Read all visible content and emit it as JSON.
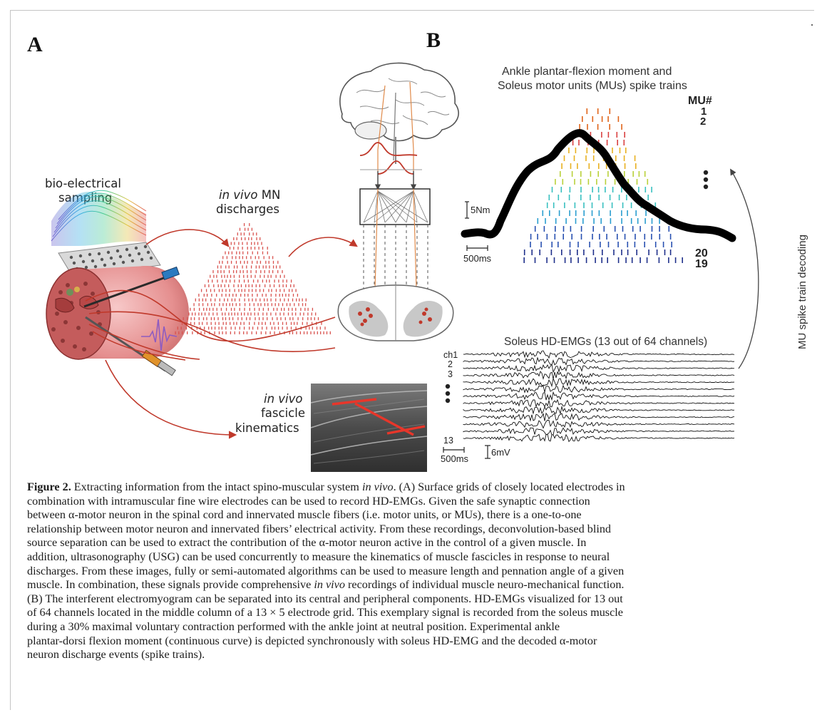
{
  "panels": {
    "a": {
      "letter": "A",
      "bio_electrical_line1": "bio-electrical",
      "bio_electrical_line2": "sampling",
      "mn_discharges_italic": "in vivo",
      "mn_discharges_rest": " MN",
      "mn_discharges_line2": "discharges",
      "fascicle_line1": "in vivo",
      "fascicle_line2": "fascicle",
      "fascicle_line3": "kinematics"
    },
    "b": {
      "letter": "B",
      "title_line1": "Ankle plantar-flexion moment and",
      "title_line2": "Soleus motor units (MUs) spike trains",
      "mu_header": "MU#",
      "mu_top_1": "1",
      "mu_top_2": "2",
      "mu_bottom_20": "20",
      "mu_bottom_19": "19",
      "moment_scale": "5Nm",
      "time_scale_top": "500ms",
      "emg_title": "Soleus HD-EMGs (13 out of 64 channels)",
      "ch_first": "ch1",
      "ch_2": "2",
      "ch_3": "3",
      "ch_last": "13",
      "time_scale_bottom": "500ms",
      "emg_scale": "6mV",
      "decoding_label": "MU spike train decoding"
    }
  },
  "colors": {
    "red_arrow": "#c0392b",
    "spike_red": "#d9534f",
    "moment_curve": "#000000",
    "mu_palette": [
      "#e0641a",
      "#d94040",
      "#e8b020",
      "#b9d13a",
      "#38c0c0",
      "#2a9ed0",
      "#2850b0",
      "#1e2f8a"
    ]
  },
  "caption": {
    "fig_label": "Figure 2.",
    "line1_pre": " Extracting information from the intact spino-muscular system ",
    "line1_italic": "in vivo",
    "line1_post": ". (A) Surface grids of closely located electrodes in",
    "line2": "combination with intramuscular fine wire electrodes can be used to record HD-EMGs. Given the safe synaptic connection",
    "line3": "between α-motor neuron in the spinal cord and innervated muscle fibers (i.e. motor units, or MUs), there is a one-to-one",
    "line4": "relationship between motor neuron and innervated fibers’ electrical activity. From these recordings, deconvolution-based blind",
    "line5": "source separation can be used to extract the contribution of the α-motor neuron active in the control of a given muscle. In",
    "line6": "addition, ultrasonography (USG) can be used concurrently to measure the kinematics of muscle fascicles in response to neural",
    "line7": "discharges. From these images, fully or semi-automated algorithms can be used to measure length and pennation angle of a given",
    "line8_pre": "muscle. In combination, these signals provide comprehensive ",
    "line8_italic": "in vivo",
    "line8_post": " recordings of individual muscle neuro-mechanical function.",
    "line9": "(B) The interferent electromyogram can be separated into its central and peripheral components. HD-EMGs visualized for 13 out",
    "line10": "of 64 channels located in the middle column of a 13 × 5 electrode grid. This exemplary signal is recorded from the soleus muscle",
    "line11": "during a 30% maximal voluntary contraction performed with the ankle joint at neutral position. Experimental ankle",
    "line12": "plantar-dorsi flexion moment (continuous curve) is depicted synchronously with soleus HD-EMG and the decoded α-motor",
    "line13": "neuron discharge events (spike trains)."
  }
}
